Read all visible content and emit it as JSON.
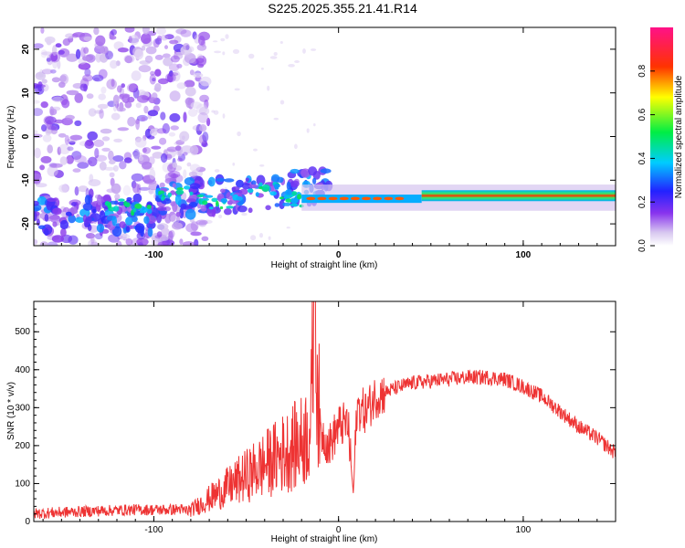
{
  "title": "S225.2025.355.21.41.R14",
  "colors": {
    "snr_line": "#ee3333",
    "axis": "#000000",
    "background": "#ffffff"
  },
  "chart_data": [
    {
      "type": "heatmap",
      "title": "S225.2025.355.21.41.R14",
      "xlabel": "Height of straight line (km)",
      "ylabel": "Frequency (Hz)",
      "xlim": [
        -165,
        150
      ],
      "ylim": [
        -25,
        25
      ],
      "x_ticks": [
        {
          "value": -100,
          "label": "-100"
        },
        {
          "value": 0,
          "label": "0"
        },
        {
          "value": 100,
          "label": "100"
        }
      ],
      "y_ticks": [
        {
          "value": -20,
          "label": "-20"
        },
        {
          "value": -10,
          "label": "-10"
        },
        {
          "value": 0,
          "label": "0"
        },
        {
          "value": 10,
          "label": "10"
        },
        {
          "value": 20,
          "label": "20"
        }
      ],
      "colorbar": {
        "label": "Normalized spectral amplitude",
        "range": [
          0,
          1
        ],
        "colormap": "rainbow (white→violet→blue→cyan→green→yellow→red→magenta)",
        "ticks": [
          {
            "value": 0.0,
            "label": "0.0"
          },
          {
            "value": 0.2,
            "label": "0.2"
          },
          {
            "value": 0.4,
            "label": "0.4"
          },
          {
            "value": 0.6,
            "label": "0.6"
          },
          {
            "value": 0.8,
            "label": "0.8"
          }
        ]
      },
      "ridge": [
        {
          "x": -130,
          "y": -16,
          "amp": 0.3
        },
        {
          "x": -110,
          "y": -17,
          "amp": 0.3
        },
        {
          "x": -90,
          "y": -14,
          "amp": 0.35
        },
        {
          "x": -70,
          "y": -14,
          "amp": 0.35
        },
        {
          "x": -50,
          "y": -12,
          "amp": 0.35
        },
        {
          "x": -30,
          "y": -13,
          "amp": 0.3
        },
        {
          "x": -15,
          "y": -14,
          "amp": 0.9
        },
        {
          "x": 0,
          "y": -15,
          "amp": 0.8
        },
        {
          "x": 20,
          "y": -14,
          "amp": 0.85
        },
        {
          "x": 50,
          "y": -13.5,
          "amp": 0.9
        },
        {
          "x": 100,
          "y": -13.5,
          "amp": 0.9
        },
        {
          "x": 150,
          "y": -13.5,
          "amp": 0.85
        }
      ]
    },
    {
      "type": "line",
      "xlabel": "Height of straight line (km)",
      "ylabel": "SNR (10 * v/v)",
      "xlim": [
        -165,
        150
      ],
      "ylim": [
        0,
        580
      ],
      "x_ticks": [
        {
          "value": -100,
          "label": "-100"
        },
        {
          "value": 0,
          "label": "0"
        },
        {
          "value": 100,
          "label": "100"
        }
      ],
      "y_ticks": [
        {
          "value": 0,
          "label": "0"
        },
        {
          "value": 100,
          "label": "100"
        },
        {
          "value": 200,
          "label": "200"
        },
        {
          "value": 300,
          "label": "300"
        },
        {
          "value": 400,
          "label": "400"
        },
        {
          "value": 500,
          "label": "500"
        }
      ],
      "series": [
        {
          "name": "",
          "x": [
            -165,
            -150,
            -130,
            -110,
            -90,
            -80,
            -70,
            -60,
            -50,
            -40,
            -30,
            -20,
            -15,
            -13,
            -10,
            -5,
            0,
            5,
            8,
            10,
            15,
            20,
            30,
            40,
            50,
            60,
            70,
            80,
            90,
            100,
            110,
            120,
            130,
            140,
            150
          ],
          "values": [
            15,
            18,
            22,
            25,
            25,
            30,
            60,
            90,
            120,
            150,
            180,
            210,
            250,
            580,
            240,
            200,
            250,
            260,
            75,
            300,
            290,
            330,
            350,
            365,
            370,
            375,
            380,
            380,
            375,
            355,
            330,
            290,
            250,
            220,
            180
          ]
        }
      ]
    }
  ]
}
